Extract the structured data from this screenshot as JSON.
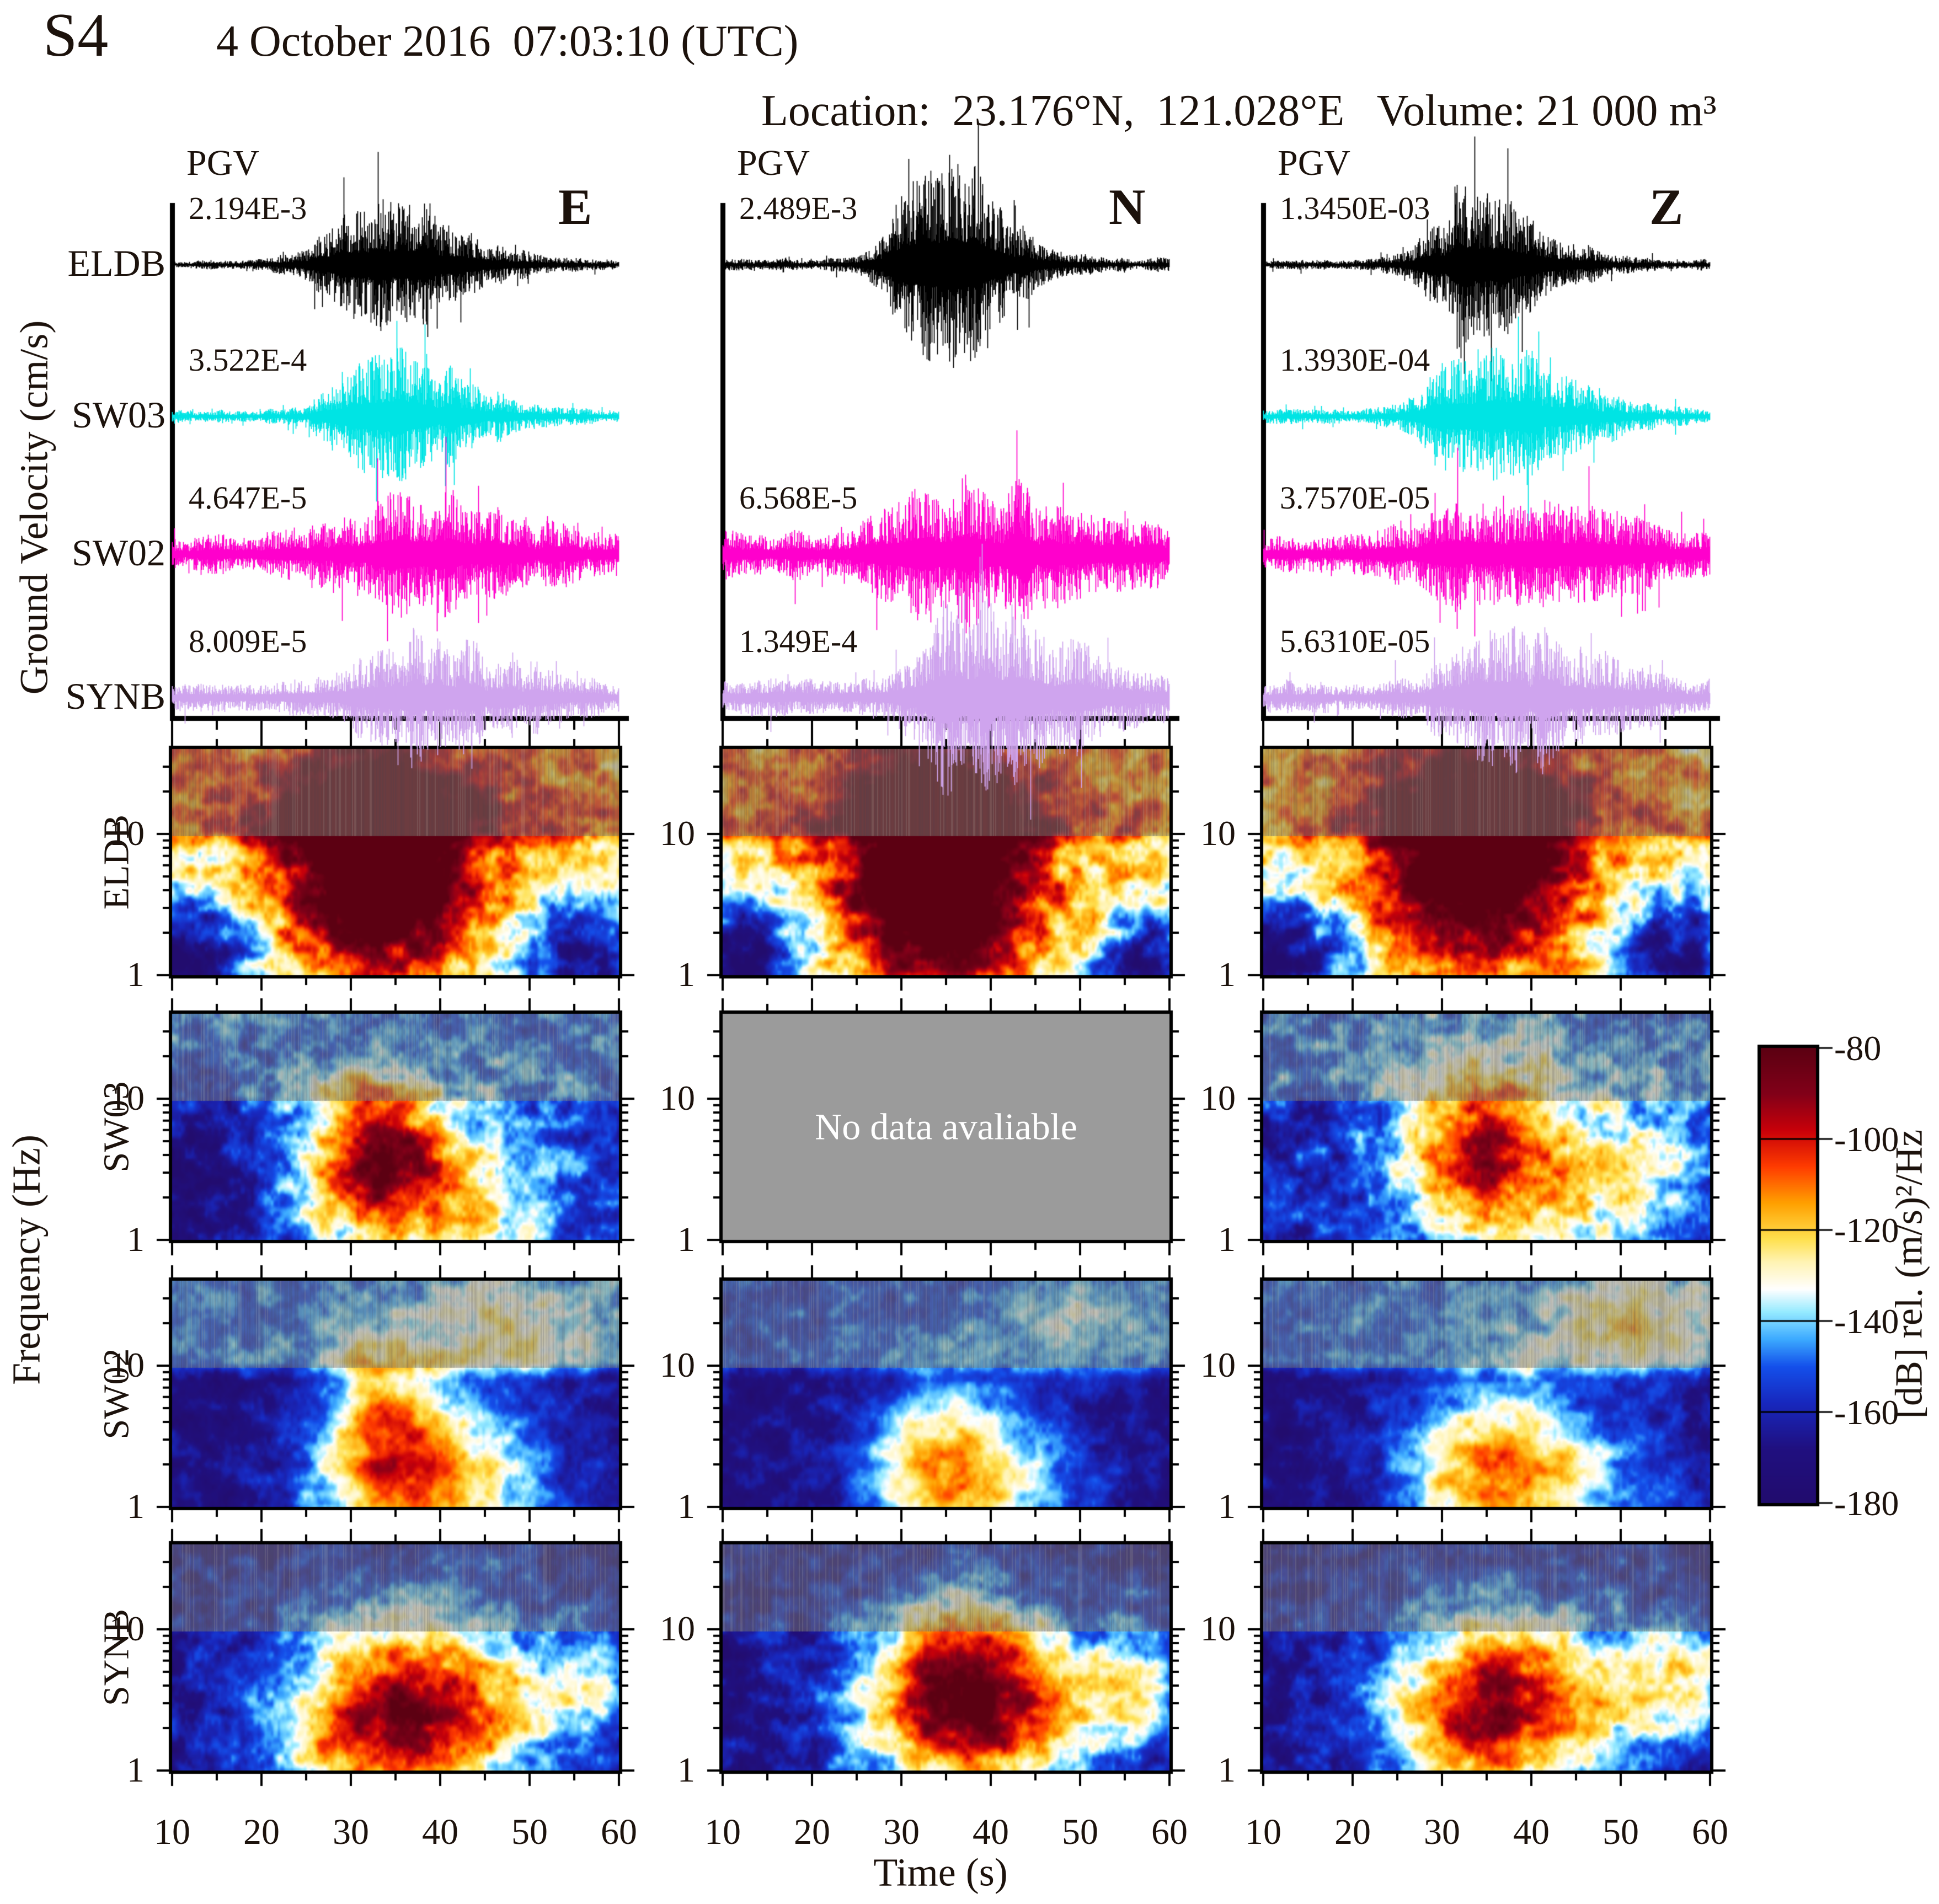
{
  "header": {
    "tag": "S4",
    "datetime": "4 October 2016  07:03:10 (UTC)",
    "info_line": "Location:  23.176°N,  121.028°E   Volume: 21 000 m³"
  },
  "waveforms": {
    "ylabel": "Ground Velocity (cm/s)",
    "pgv_label": "PGV",
    "components": [
      "E",
      "N",
      "Z"
    ],
    "stations": [
      {
        "name": "ELDB",
        "color": "#000000"
      },
      {
        "name": "SW03",
        "color": "#00e4e4"
      },
      {
        "name": "SW02",
        "color": "#ff00cc"
      },
      {
        "name": "SYNB",
        "color": "#cfa4ee"
      }
    ],
    "pgv": {
      "E": [
        "2.194E-3",
        "3.522E-4",
        "4.647E-5",
        "8.009E-5"
      ],
      "N": [
        "2.489E-3",
        null,
        "6.568E-5",
        "1.349E-4"
      ],
      "Z": [
        "1.3450E-03",
        "1.3930E-04",
        "3.7570E-05",
        "5.6310E-05"
      ]
    }
  },
  "spectrograms": {
    "ylabel": "Frequency (Hz)",
    "xlabel": "Time (s)",
    "x_tick_labels": [
      "10",
      "20",
      "30",
      "40",
      "50",
      "60"
    ],
    "y_tick_labels": [
      "10",
      "1"
    ],
    "no_data_text": "No data avaliable",
    "rows": [
      "ELDB",
      "SW03",
      "SW02",
      "SYNB"
    ]
  },
  "colorbar": {
    "tick_labels": [
      "-80",
      "-100",
      "-120",
      "-140",
      "-160",
      "-180"
    ],
    "label": "[dB] rel. (m/s)²/Hz"
  },
  "chart_data": {
    "type": "composite",
    "title": "S4  4 October 2016 07:03:10 (UTC)",
    "event": {
      "location": "23.176°N, 121.028°E",
      "volume_m3": 21000,
      "date": "2016-10-04",
      "time_utc": "07:03:10"
    },
    "time_axis": {
      "label": "Time (s)",
      "range": [
        10,
        60
      ],
      "major_ticks": [
        10,
        20,
        30,
        40,
        50,
        60
      ],
      "minor_ticks": [
        15,
        25,
        35,
        45,
        55
      ]
    },
    "waveform_panels": {
      "units": "cm/s",
      "components": [
        "E",
        "N",
        "Z"
      ],
      "stations": [
        "ELDB",
        "SW03",
        "SW02",
        "SYNB"
      ],
      "pgv_cm_s": {
        "E": {
          "ELDB": 0.002194,
          "SW03": 0.0003522,
          "SW02": 4.647e-05,
          "SYNB": 8.009e-05
        },
        "N": {
          "ELDB": 0.002489,
          "SW03": null,
          "SW02": 6.568e-05,
          "SYNB": 0.0001349
        },
        "Z": {
          "ELDB": 0.001345,
          "SW03": 0.0001393,
          "SW02": 3.757e-05,
          "SYNB": 5.631e-05
        }
      },
      "traces": [
        {
          "component": "E",
          "station": "ELDB",
          "amp": 125,
          "peak_t": 32.5,
          "rise": 4.5,
          "decay": 8,
          "noise_floor": 0.06
        },
        {
          "component": "E",
          "station": "SW03",
          "amp": 115,
          "peak_t": 33.5,
          "rise": 4.0,
          "decay": 8,
          "noise_floor": 0.09
        },
        {
          "component": "E",
          "station": "SW02",
          "amp": 100,
          "peak_t": 36.0,
          "rise": 6.0,
          "decay": 12,
          "noise_floor": 0.3
        },
        {
          "component": "E",
          "station": "SYNB",
          "amp": 110,
          "peak_t": 36.0,
          "rise": 5.0,
          "decay": 10,
          "noise_floor": 0.22
        },
        {
          "component": "N",
          "station": "ELDB",
          "amp": 215,
          "peak_t": 34.0,
          "rise": 3.5,
          "decay": 6,
          "noise_floor": 0.05
        },
        {
          "component": "N",
          "station": "SW02",
          "amp": 130,
          "peak_t": 36.0,
          "rise": 6.0,
          "decay": 12,
          "noise_floor": 0.3
        },
        {
          "component": "N",
          "station": "SYNB",
          "amp": 165,
          "peak_t": 35.5,
          "rise": 3.5,
          "decay": 10,
          "noise_floor": 0.2
        },
        {
          "component": "Z",
          "station": "ELDB",
          "amp": 135,
          "peak_t": 33.5,
          "rise": 4.0,
          "decay": 7,
          "noise_floor": 0.06
        },
        {
          "component": "Z",
          "station": "SW03",
          "amp": 130,
          "peak_t": 34.0,
          "rise": 4.5,
          "decay": 9,
          "noise_floor": 0.1
        },
        {
          "component": "Z",
          "station": "SW02",
          "amp": 105,
          "peak_t": 36.0,
          "rise": 6.0,
          "decay": 12,
          "noise_floor": 0.3
        },
        {
          "component": "Z",
          "station": "SYNB",
          "amp": 125,
          "peak_t": 36.0,
          "rise": 4.5,
          "decay": 10,
          "noise_floor": 0.2
        }
      ]
    },
    "spectrogram_panels": {
      "frequency_axis": {
        "label": "Frequency (Hz)",
        "scale": "log",
        "range": [
          1,
          40
        ],
        "labeled_ticks": [
          1,
          10
        ]
      },
      "colorbar": {
        "label": "[dB] rel. (m/s)²/Hz",
        "range": [
          -180,
          -80
        ],
        "ticks": [
          -80,
          -100,
          -120,
          -140,
          -160,
          -180
        ]
      },
      "masked_band_above_hz": 9,
      "panels": [
        {
          "station": "ELDB",
          "component": "E",
          "available": true,
          "base": 0.45,
          "noise": 0.22,
          "top_add": 0.2,
          "blobs": [
            [
              33,
              4.5,
              7,
              0.5,
              0.55
            ],
            [
              33,
              14,
              7,
              0.4,
              0.3
            ],
            [
              35,
              5,
              22,
              0.55,
              0.18
            ],
            [
              12,
              1.3,
              5,
              0.3,
              -0.5
            ],
            [
              56,
              1.4,
              5,
              0.28,
              -0.42
            ]
          ]
        },
        {
          "station": "ELDB",
          "component": "N",
          "available": true,
          "base": 0.45,
          "noise": 0.22,
          "top_add": 0.2,
          "blobs": [
            [
              34,
              4,
              7,
              0.5,
              0.6
            ],
            [
              34,
              15,
              7,
              0.4,
              0.32
            ],
            [
              35,
              5,
              22,
              0.55,
              0.18
            ],
            [
              12,
              1.3,
              5,
              0.3,
              -0.5
            ],
            [
              57,
              1.3,
              4,
              0.25,
              -0.4
            ]
          ]
        },
        {
          "station": "ELDB",
          "component": "Z",
          "available": true,
          "base": 0.44,
          "noise": 0.22,
          "top_add": 0.18,
          "blobs": [
            [
              34,
              4.5,
              8,
              0.5,
              0.5
            ],
            [
              33,
              16,
              8,
              0.4,
              0.3
            ],
            [
              35,
              5,
              22,
              0.55,
              0.15
            ],
            [
              12,
              1.4,
              5,
              0.3,
              -0.45
            ],
            [
              56,
              1.4,
              5,
              0.3,
              -0.4
            ]
          ]
        },
        {
          "station": "SW03",
          "component": "E",
          "available": true,
          "base": 0.2,
          "noise": 0.2,
          "top_add": 0.1,
          "blobs": [
            [
              33,
              5,
              5,
              0.35,
              0.5
            ],
            [
              34,
              2.2,
              9,
              0.4,
              0.32
            ],
            [
              45,
              2,
              8,
              0.4,
              0.2
            ],
            [
              13,
              2,
              5,
              0.4,
              -0.15
            ]
          ]
        },
        {
          "station": "SW03",
          "component": "N",
          "available": false,
          "base": 0,
          "noise": 0,
          "top_add": 0,
          "blobs": []
        },
        {
          "station": "SW03",
          "component": "Z",
          "available": true,
          "base": 0.2,
          "noise": 0.2,
          "top_add": 0.12,
          "blobs": [
            [
              34,
              5,
              6,
              0.4,
              0.45
            ],
            [
              40,
              2.5,
              10,
              0.45,
              0.3
            ],
            [
              52,
              3,
              6,
              0.4,
              0.18
            ]
          ]
        },
        {
          "station": "SW02",
          "component": "E",
          "available": true,
          "base": 0.1,
          "noise": 0.15,
          "top_add": 0.22,
          "blobs": [
            [
              35,
              2,
              7,
              0.45,
              0.4
            ],
            [
              41,
              1.4,
              10,
              0.4,
              0.33
            ],
            [
              48,
              18,
              7,
              0.3,
              0.22
            ],
            [
              33,
              6,
              4,
              0.3,
              0.25
            ]
          ]
        },
        {
          "station": "SW02",
          "component": "N",
          "available": true,
          "base": 0.1,
          "noise": 0.14,
          "top_add": 0.16,
          "blobs": [
            [
              34,
              2,
              6,
              0.45,
              0.35
            ],
            [
              40,
              1.4,
              9,
              0.4,
              0.3
            ],
            [
              50,
              20,
              8,
              0.3,
              0.18
            ]
          ]
        },
        {
          "station": "SW02",
          "component": "Z",
          "available": true,
          "base": 0.1,
          "noise": 0.15,
          "top_add": 0.2,
          "blobs": [
            [
              35,
              2,
              7,
              0.45,
              0.38
            ],
            [
              42,
              1.4,
              10,
              0.4,
              0.32
            ],
            [
              52,
              20,
              8,
              0.3,
              0.25
            ]
          ]
        },
        {
          "station": "SYNB",
          "component": "E",
          "available": true,
          "base": 0.12,
          "noise": 0.18,
          "top_add": 0.05,
          "blobs": [
            [
              35,
              3.5,
              8,
              0.5,
              0.45
            ],
            [
              33,
              1.7,
              10,
              0.4,
              0.38
            ],
            [
              48,
              3,
              7,
              0.4,
              0.25
            ],
            [
              57,
              4,
              4,
              0.3,
              0.22
            ]
          ]
        },
        {
          "station": "SYNB",
          "component": "N",
          "available": true,
          "base": 0.12,
          "noise": 0.18,
          "top_add": 0.05,
          "blobs": [
            [
              36,
              5,
              6,
              0.4,
              0.5
            ],
            [
              36,
              2.2,
              9,
              0.45,
              0.45
            ],
            [
              47,
              3,
              7,
              0.4,
              0.28
            ],
            [
              57,
              4,
              4,
              0.3,
              0.3
            ]
          ]
        },
        {
          "station": "SYNB",
          "component": "Z",
          "available": true,
          "base": 0.12,
          "noise": 0.18,
          "top_add": 0.05,
          "blobs": [
            [
              35,
              4,
              7,
              0.45,
              0.45
            ],
            [
              34,
              1.8,
              9,
              0.4,
              0.36
            ],
            [
              50,
              3.5,
              8,
              0.4,
              0.28
            ],
            [
              57,
              5,
              4,
              0.3,
              0.25
            ]
          ]
        }
      ]
    }
  }
}
